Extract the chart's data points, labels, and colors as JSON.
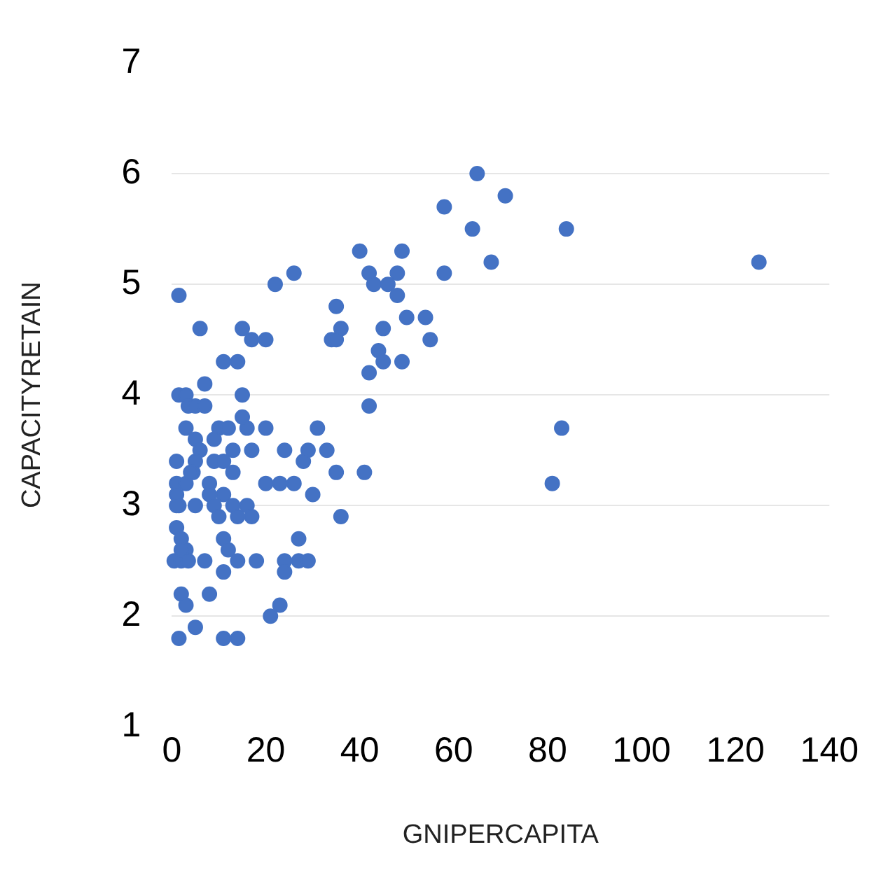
{
  "chart_data": {
    "type": "scatter",
    "xlabel": "GNIPERCAPITA",
    "ylabel": "CAPACITYRETAIN",
    "xlim": [
      0,
      140
    ],
    "xticks": [
      0,
      20,
      40,
      60,
      80,
      100,
      120,
      140
    ],
    "ylim": [
      1,
      7
    ],
    "yticks": [
      1,
      2,
      3,
      4,
      5,
      6,
      7
    ],
    "grid": "y",
    "legend": false,
    "marker": "circle",
    "series": [
      {
        "color": "#4472c4",
        "x": [
          65,
          71,
          58,
          64,
          84,
          68,
          125,
          40,
          49,
          42,
          48,
          58,
          26,
          22,
          43,
          46,
          48,
          1.5,
          35,
          50,
          54,
          6,
          15,
          36,
          45,
          17,
          20,
          34,
          35,
          55,
          44,
          11,
          14,
          45,
          49,
          42,
          7,
          1.5,
          3,
          15,
          3.5,
          5,
          7,
          42,
          3,
          10,
          12,
          16,
          20,
          31,
          83,
          15,
          5,
          9,
          6,
          13,
          17,
          24,
          29,
          33,
          1,
          5,
          9,
          11,
          28,
          4.5,
          13,
          35,
          41,
          1,
          3,
          8,
          20,
          23,
          26,
          81,
          1,
          8,
          11,
          30,
          1.5,
          5,
          9,
          13,
          16,
          10,
          14,
          17,
          36,
          1,
          2,
          11,
          27,
          3,
          12,
          0.5,
          2,
          3.5,
          7,
          14,
          18,
          24,
          27,
          29,
          11,
          24,
          2,
          8,
          3,
          23,
          21,
          5,
          1.5,
          11,
          14,
          2,
          1,
          4
        ],
        "values": [
          6.0,
          5.8,
          5.7,
          5.5,
          5.5,
          5.2,
          5.2,
          5.3,
          5.3,
          5.1,
          5.1,
          5.1,
          5.1,
          5.0,
          5.0,
          5.0,
          4.9,
          4.9,
          4.8,
          4.7,
          4.7,
          4.6,
          4.6,
          4.6,
          4.6,
          4.5,
          4.5,
          4.5,
          4.5,
          4.5,
          4.4,
          4.3,
          4.3,
          4.3,
          4.3,
          4.2,
          4.1,
          4.0,
          4.0,
          4.0,
          3.9,
          3.9,
          3.9,
          3.9,
          3.7,
          3.7,
          3.7,
          3.7,
          3.7,
          3.7,
          3.7,
          3.8,
          3.6,
          3.6,
          3.5,
          3.5,
          3.5,
          3.5,
          3.5,
          3.5,
          3.4,
          3.4,
          3.4,
          3.4,
          3.4,
          3.3,
          3.3,
          3.3,
          3.3,
          3.2,
          3.2,
          3.2,
          3.2,
          3.2,
          3.2,
          3.2,
          3.1,
          3.1,
          3.1,
          3.1,
          3.0,
          3.0,
          3.0,
          3.0,
          3.0,
          2.9,
          2.9,
          2.9,
          2.9,
          2.8,
          2.7,
          2.7,
          2.7,
          2.6,
          2.6,
          2.5,
          2.5,
          2.5,
          2.5,
          2.5,
          2.5,
          2.5,
          2.5,
          2.5,
          2.4,
          2.4,
          2.2,
          2.2,
          2.1,
          2.1,
          2.0,
          1.9,
          1.8,
          1.8,
          1.8,
          2.6,
          3.0,
          3.3
        ]
      }
    ]
  }
}
